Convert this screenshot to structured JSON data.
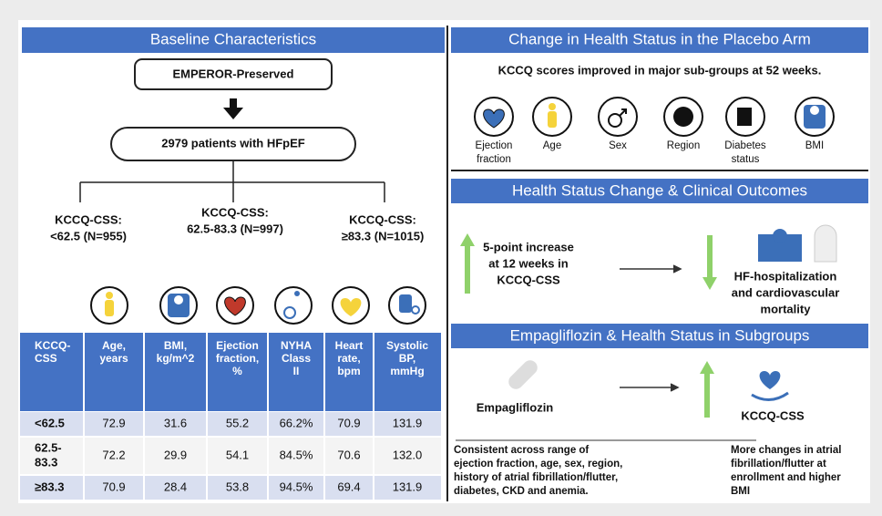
{
  "left": {
    "header": "Baseline Characteristics",
    "trial": "EMPEROR-Preserved",
    "population": "2979 patients with HFpEF",
    "groups": [
      [
        "KCCQ-CSS:",
        "<62.5 (N=955)"
      ],
      [
        "KCCQ-CSS:",
        "62.5-83.3 (N=997)"
      ],
      [
        "KCCQ-CSS:",
        "≥83.3 (N=1015)"
      ]
    ],
    "table": {
      "columns": [
        [
          "KCCQ-",
          "CSS"
        ],
        [
          "Age,",
          "years"
        ],
        [
          "BMI,",
          "kg/m^2"
        ],
        [
          "Ejection",
          "fraction,",
          "%"
        ],
        [
          "NYHA",
          "Class",
          "II"
        ],
        [
          "Heart",
          "rate,",
          "bpm"
        ],
        [
          "Systolic",
          "BP,",
          "mmHg"
        ]
      ],
      "rows": [
        [
          [
            "<62.5"
          ],
          "72.9",
          "31.6",
          "55.2",
          "66.2%",
          "70.9",
          "131.9"
        ],
        [
          [
            "62.5-",
            "83.3"
          ],
          "72.2",
          "29.9",
          "54.1",
          "84.5%",
          "70.6",
          "132.0"
        ],
        [
          [
            "≥83.3"
          ],
          "70.9",
          "28.4",
          "53.8",
          "94.5%",
          "69.4",
          "131.9"
        ]
      ]
    }
  },
  "right": {
    "placebo": {
      "header": "Change in Health Status in the Placebo Arm",
      "subtitle": "KCCQ scores improved in major sub-groups at 52 weeks.",
      "subgroups": [
        [
          "Ejection",
          "fraction"
        ],
        [
          "Age"
        ],
        [
          "Sex"
        ],
        [
          "Region"
        ],
        [
          "Diabetes",
          "status"
        ],
        [
          "BMI"
        ]
      ]
    },
    "outcomes": {
      "header": "Health Status Change & Clinical Outcomes",
      "increase": [
        "5-point increase",
        "at 12 weeks in",
        "KCCQ-CSS"
      ],
      "events": [
        "HF-hospitalization",
        "and cardiovascular",
        "mortality"
      ]
    },
    "subgroups": {
      "header": "Empagliflozin & Health Status in Subgroups",
      "drug": "Empagliflozin",
      "measure": "KCCQ-CSS",
      "consistent": [
        "Consistent across range of",
        "ejection fraction, age, sex, region,",
        "history of atrial fibrillation/flutter,",
        "diabetes, CKD and anemia."
      ],
      "more": [
        "More changes in atrial",
        "fibrillation/flutter at",
        "enrollment and higher",
        "BMI"
      ]
    }
  }
}
